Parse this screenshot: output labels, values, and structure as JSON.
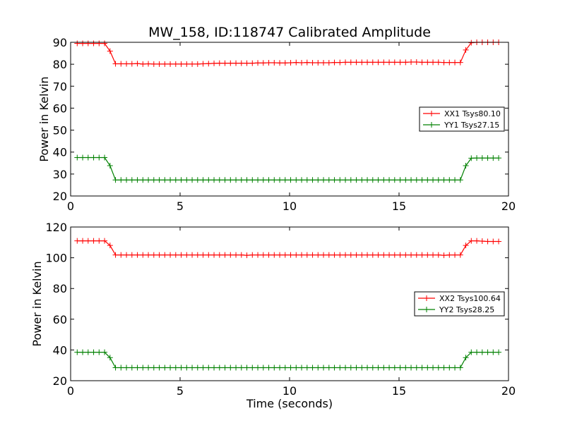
{
  "chart_data": {
    "title": "MW_158, ID:118747 Calibrated Amplitude",
    "xlabel": "Time (seconds)",
    "type": "line",
    "panels": [
      {
        "ylabel": "Power in Kelvin",
        "xlim": [
          0,
          20
        ],
        "ylim": [
          20,
          90
        ],
        "xticks": [
          "0",
          "5",
          "10",
          "15",
          "20"
        ],
        "yticks": [
          "20",
          "30",
          "40",
          "50",
          "60",
          "70",
          "80",
          "90"
        ],
        "xtick_values": [
          0,
          5,
          10,
          15,
          20
        ],
        "ytick_values": [
          20,
          30,
          40,
          50,
          60,
          70,
          80,
          90
        ],
        "legend_position": "right",
        "series": [
          {
            "name": "XX1 Tsys80.10",
            "color": "#ff0000",
            "x": [
              0.3,
              0.55,
              0.8,
              1.05,
              1.3,
              1.55,
              1.8,
              2.05,
              2.3,
              2.55,
              2.8,
              3.05,
              3.3,
              3.55,
              3.8,
              4.05,
              4.3,
              4.55,
              4.8,
              5.05,
              5.3,
              5.55,
              5.8,
              6.05,
              6.3,
              6.55,
              6.8,
              7.05,
              7.3,
              7.55,
              7.8,
              8.05,
              8.3,
              8.55,
              8.8,
              9.05,
              9.3,
              9.55,
              9.8,
              10.05,
              10.3,
              10.55,
              10.8,
              11.05,
              11.3,
              11.55,
              11.8,
              12.05,
              12.3,
              12.55,
              12.8,
              13.05,
              13.3,
              13.55,
              13.8,
              14.05,
              14.3,
              14.55,
              14.8,
              15.05,
              15.3,
              15.55,
              15.8,
              16.05,
              16.3,
              16.55,
              16.8,
              17.05,
              17.3,
              17.55,
              17.8,
              18.05,
              18.3,
              18.55,
              18.8,
              19.05,
              19.3,
              19.55
            ],
            "values": [
              89.5,
              89.5,
              89.5,
              89.5,
              89.5,
              89.5,
              86,
              80.2,
              80.2,
              80.2,
              80.2,
              80.3,
              80.1,
              80.2,
              80.1,
              80.1,
              80.1,
              80.1,
              80.1,
              80.1,
              80.1,
              80.1,
              80.1,
              80.2,
              80.3,
              80.4,
              80.5,
              80.5,
              80.5,
              80.5,
              80.5,
              80.5,
              80.5,
              80.6,
              80.6,
              80.7,
              80.7,
              80.6,
              80.6,
              80.7,
              80.8,
              80.7,
              80.8,
              80.7,
              80.7,
              80.7,
              80.7,
              80.8,
              80.8,
              80.9,
              80.9,
              80.9,
              80.9,
              80.9,
              80.9,
              80.9,
              80.9,
              80.9,
              80.9,
              80.9,
              80.9,
              81,
              81,
              80.9,
              80.9,
              80.9,
              80.9,
              80.8,
              80.8,
              80.8,
              80.8,
              86.5,
              89.8,
              90,
              90,
              90,
              90,
              90
            ]
          },
          {
            "name": "YY1 Tsys27.15",
            "color": "#008000",
            "x": [
              0.3,
              0.55,
              0.8,
              1.05,
              1.3,
              1.55,
              1.8,
              2.05,
              2.3,
              2.55,
              2.8,
              3.05,
              3.3,
              3.55,
              3.8,
              4.05,
              4.3,
              4.55,
              4.8,
              5.05,
              5.3,
              5.55,
              5.8,
              6.05,
              6.3,
              6.55,
              6.8,
              7.05,
              7.3,
              7.55,
              7.8,
              8.05,
              8.3,
              8.55,
              8.8,
              9.05,
              9.3,
              9.55,
              9.8,
              10.05,
              10.3,
              10.55,
              10.8,
              11.05,
              11.3,
              11.55,
              11.8,
              12.05,
              12.3,
              12.55,
              12.8,
              13.05,
              13.3,
              13.55,
              13.8,
              14.05,
              14.3,
              14.55,
              14.8,
              15.05,
              15.3,
              15.55,
              15.8,
              16.05,
              16.3,
              16.55,
              16.8,
              17.05,
              17.3,
              17.55,
              17.8,
              18.05,
              18.3,
              18.55,
              18.8,
              19.05,
              19.3,
              19.55
            ],
            "values": [
              37.5,
              37.5,
              37.5,
              37.5,
              37.5,
              37.5,
              33.8,
              27.3,
              27.3,
              27.3,
              27.3,
              27.3,
              27.3,
              27.3,
              27.3,
              27.3,
              27.3,
              27.3,
              27.3,
              27.3,
              27.3,
              27.3,
              27.3,
              27.3,
              27.3,
              27.3,
              27.3,
              27.3,
              27.3,
              27.3,
              27.3,
              27.3,
              27.3,
              27.3,
              27.3,
              27.3,
              27.3,
              27.3,
              27.3,
              27.3,
              27.3,
              27.3,
              27.3,
              27.3,
              27.3,
              27.3,
              27.3,
              27.3,
              27.3,
              27.3,
              27.3,
              27.3,
              27.3,
              27.3,
              27.3,
              27.3,
              27.3,
              27.3,
              27.3,
              27.3,
              27.3,
              27.3,
              27.3,
              27.3,
              27.3,
              27.3,
              27.3,
              27.3,
              27.3,
              27.3,
              27.3,
              33.8,
              37.2,
              37.3,
              37.3,
              37.3,
              37.3,
              37.3
            ]
          }
        ]
      },
      {
        "ylabel": "Power in Kelvin",
        "xlim": [
          0,
          20
        ],
        "ylim": [
          20,
          120
        ],
        "xticks": [
          "0",
          "5",
          "10",
          "15",
          "20"
        ],
        "yticks": [
          "20",
          "40",
          "60",
          "80",
          "100",
          "120"
        ],
        "xtick_values": [
          0,
          5,
          10,
          15,
          20
        ],
        "ytick_values": [
          20,
          40,
          60,
          80,
          100,
          120
        ],
        "legend_position": "right",
        "series": [
          {
            "name": "XX2 Tsys100.64",
            "color": "#ff0000",
            "x": [
              0.3,
              0.55,
              0.8,
              1.05,
              1.3,
              1.55,
              1.8,
              2.05,
              2.3,
              2.55,
              2.8,
              3.05,
              3.3,
              3.55,
              3.8,
              4.05,
              4.3,
              4.55,
              4.8,
              5.05,
              5.3,
              5.55,
              5.8,
              6.05,
              6.3,
              6.55,
              6.8,
              7.05,
              7.3,
              7.55,
              7.8,
              8.05,
              8.3,
              8.55,
              8.8,
              9.05,
              9.3,
              9.55,
              9.8,
              10.05,
              10.3,
              10.55,
              10.8,
              11.05,
              11.3,
              11.55,
              11.8,
              12.05,
              12.3,
              12.55,
              12.8,
              13.05,
              13.3,
              13.55,
              13.8,
              14.05,
              14.3,
              14.55,
              14.8,
              15.05,
              15.3,
              15.55,
              15.8,
              16.05,
              16.3,
              16.55,
              16.8,
              17.05,
              17.3,
              17.55,
              17.8,
              18.05,
              18.3,
              18.55,
              18.8,
              19.05,
              19.3,
              19.55
            ],
            "values": [
              111,
              111,
              111,
              111,
              111,
              111,
              108,
              101.8,
              101.8,
              101.8,
              101.8,
              101.8,
              101.8,
              101.8,
              101.8,
              101.8,
              101.8,
              101.8,
              101.8,
              101.8,
              101.8,
              101.8,
              101.8,
              101.8,
              101.8,
              101.8,
              101.8,
              101.8,
              101.8,
              101.8,
              101.8,
              101.6,
              101.8,
              101.8,
              101.8,
              101.8,
              101.8,
              101.8,
              101.8,
              101.8,
              101.8,
              101.8,
              101.8,
              101.8,
              101.8,
              101.8,
              101.8,
              101.8,
              101.8,
              101.8,
              101.8,
              101.8,
              101.8,
              101.8,
              101.8,
              101.8,
              101.8,
              101.8,
              101.8,
              101.8,
              101.8,
              101.8,
              101.8,
              101.8,
              101.8,
              101.8,
              101.8,
              101.6,
              101.8,
              101.8,
              101.8,
              108,
              111,
              111,
              110.8,
              110.6,
              110.6,
              110.6
            ]
          },
          {
            "name": "YY2 Tsys28.25",
            "color": "#008000",
            "x": [
              0.3,
              0.55,
              0.8,
              1.05,
              1.3,
              1.55,
              1.8,
              2.05,
              2.3,
              2.55,
              2.8,
              3.05,
              3.3,
              3.55,
              3.8,
              4.05,
              4.3,
              4.55,
              4.8,
              5.05,
              5.3,
              5.55,
              5.8,
              6.05,
              6.3,
              6.55,
              6.8,
              7.05,
              7.3,
              7.55,
              7.8,
              8.05,
              8.3,
              8.55,
              8.8,
              9.05,
              9.3,
              9.55,
              9.8,
              10.05,
              10.3,
              10.55,
              10.8,
              11.05,
              11.3,
              11.55,
              11.8,
              12.05,
              12.3,
              12.55,
              12.8,
              13.05,
              13.3,
              13.55,
              13.8,
              14.05,
              14.3,
              14.55,
              14.8,
              15.05,
              15.3,
              15.55,
              15.8,
              16.05,
              16.3,
              16.55,
              16.8,
              17.05,
              17.3,
              17.55,
              17.8,
              18.05,
              18.3,
              18.55,
              18.8,
              19.05,
              19.3,
              19.55
            ],
            "values": [
              38.5,
              38.5,
              38.5,
              38.5,
              38.5,
              38.5,
              35,
              28.5,
              28.5,
              28.5,
              28.5,
              28.5,
              28.5,
              28.5,
              28.5,
              28.5,
              28.5,
              28.5,
              28.5,
              28.5,
              28.5,
              28.5,
              28.5,
              28.5,
              28.5,
              28.5,
              28.5,
              28.5,
              28.5,
              28.5,
              28.5,
              28.5,
              28.5,
              28.5,
              28.5,
              28.5,
              28.5,
              28.5,
              28.5,
              28.5,
              28.5,
              28.5,
              28.5,
              28.5,
              28.5,
              28.5,
              28.5,
              28.5,
              28.5,
              28.5,
              28.5,
              28.5,
              28.5,
              28.5,
              28.5,
              28.5,
              28.5,
              28.5,
              28.5,
              28.5,
              28.5,
              28.5,
              28.5,
              28.5,
              28.5,
              28.5,
              28.5,
              28.5,
              28.5,
              28.5,
              28.5,
              35,
              38.5,
              38.5,
              38.5,
              38.5,
              38.5,
              38.5
            ]
          }
        ]
      }
    ]
  }
}
